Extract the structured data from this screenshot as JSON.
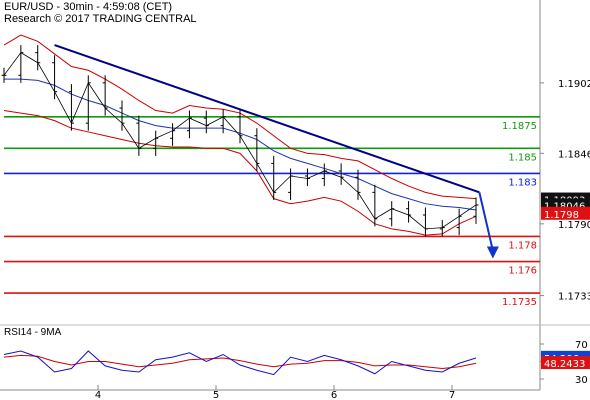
{
  "header": {
    "title": "EUR/USD - 30min - 4:59:08 (CET)",
    "subtitle": "Research © 2017 TRADING CENTRAL"
  },
  "colors": {
    "support": "#dd1111",
    "resistance": "#119911",
    "pivot": "#1122dd",
    "trendline": "#000088",
    "arrow": "#1133cc",
    "price": "#000000",
    "bands": "#cc0000",
    "ma": "#2233aa",
    "rsi": "#1111cc",
    "rsi_ma": "#cc0000"
  },
  "chart_data": [
    {
      "type": "line",
      "name": "price-panel",
      "y_ticks": [
        1.1902,
        1.1846,
        1.179,
        1.1733
      ],
      "x_ticks": [
        "4",
        "5",
        "6",
        "7"
      ],
      "ylim": [
        1.1712,
        1.1944
      ],
      "levels": [
        {
          "value": 1.1875,
          "label": "1.1875",
          "kind": "resistance"
        },
        {
          "value": 1.185,
          "label": "1.185",
          "kind": "resistance"
        },
        {
          "value": 1.183,
          "label": "1.183",
          "kind": "pivot"
        },
        {
          "value": 1.178,
          "label": "1.178",
          "kind": "support"
        },
        {
          "value": 1.176,
          "label": "1.176",
          "kind": "support"
        },
        {
          "value": 1.1735,
          "label": "1.1735",
          "kind": "support"
        }
      ],
      "price_labels": [
        {
          "value": 1.18093,
          "label": "1.18093",
          "style": "dark"
        },
        {
          "value": 1.18046,
          "label": "1.18046",
          "style": "dark"
        },
        {
          "value": 1.1798,
          "label": "1.1798",
          "style": "red"
        }
      ],
      "trendline": {
        "from": [
          0.75,
          1.1932
        ],
        "to": [
          7.05,
          1.1815
        ]
      },
      "arrow": {
        "from": [
          7.05,
          1.1815
        ],
        "to": [
          7.25,
          1.1764
        ]
      },
      "x": [
        0.0,
        0.25,
        0.5,
        0.75,
        1.0,
        1.25,
        1.5,
        1.75,
        2.0,
        2.25,
        2.5,
        2.75,
        3.0,
        3.25,
        3.5,
        3.75,
        4.0,
        4.25,
        4.5,
        4.75,
        5.0,
        5.25,
        5.5,
        5.75,
        6.0,
        6.25,
        6.5,
        6.75,
        7.0
      ],
      "close": [
        1.1908,
        1.1926,
        1.1918,
        1.1895,
        1.187,
        1.1902,
        1.1882,
        1.187,
        1.185,
        1.1858,
        1.1864,
        1.1874,
        1.1868,
        1.1875,
        1.186,
        1.1838,
        1.1815,
        1.1828,
        1.1826,
        1.1832,
        1.1827,
        1.1815,
        1.1794,
        1.1802,
        1.1797,
        1.1786,
        1.1787,
        1.1796,
        1.1805
      ],
      "ma": [
        1.1905,
        1.1905,
        1.1904,
        1.19,
        1.1893,
        1.1888,
        1.1884,
        1.1878,
        1.1872,
        1.1868,
        1.1866,
        1.1866,
        1.1866,
        1.1866,
        1.1862,
        1.1857,
        1.1848,
        1.1842,
        1.1838,
        1.1834,
        1.183,
        1.1826,
        1.182,
        1.1814,
        1.181,
        1.1806,
        1.1804,
        1.1803,
        1.1801
      ],
      "upper": [
        1.1932,
        1.194,
        1.1935,
        1.1925,
        1.1915,
        1.1912,
        1.1905,
        1.1897,
        1.1888,
        1.188,
        1.1878,
        1.1884,
        1.1882,
        1.1881,
        1.1878,
        1.187,
        1.186,
        1.185,
        1.1846,
        1.1845,
        1.1842,
        1.184,
        1.1833,
        1.1826,
        1.182,
        1.1815,
        1.1812,
        1.1811,
        1.181
      ],
      "lower": [
        1.188,
        1.1878,
        1.1876,
        1.1872,
        1.1866,
        1.1863,
        1.186,
        1.1857,
        1.1854,
        1.1852,
        1.1851,
        1.1851,
        1.185,
        1.185,
        1.1846,
        1.1832,
        1.181,
        1.1806,
        1.1808,
        1.1811,
        1.1808,
        1.18,
        1.179,
        1.1786,
        1.1784,
        1.1781,
        1.1782,
        1.179,
        1.1796
      ]
    },
    {
      "type": "line",
      "name": "rsi-panel",
      "title": "RSI14 - 9MA",
      "y_ticks": [
        70,
        50,
        30
      ],
      "ylim": [
        22,
        78
      ],
      "value_labels": [
        {
          "value": 54.206,
          "label": "54.206",
          "style": "blue"
        },
        {
          "value": 48.2433,
          "label": "48.2433",
          "style": "red"
        }
      ],
      "x": [
        0.0,
        0.25,
        0.5,
        0.75,
        1.0,
        1.25,
        1.5,
        1.75,
        2.0,
        2.25,
        2.5,
        2.75,
        3.0,
        3.25,
        3.5,
        3.75,
        4.0,
        4.25,
        4.5,
        4.75,
        5.0,
        5.25,
        5.5,
        5.75,
        6.0,
        6.25,
        6.5,
        6.75,
        7.0
      ],
      "rsi": [
        58,
        62,
        55,
        38,
        42,
        62,
        45,
        40,
        38,
        52,
        55,
        60,
        50,
        58,
        46,
        40,
        35,
        55,
        50,
        57,
        52,
        45,
        36,
        50,
        45,
        40,
        38,
        48,
        54
      ],
      "rsi_ma": [
        55,
        57,
        56,
        50,
        46,
        50,
        50,
        47,
        44,
        46,
        48,
        52,
        53,
        54,
        51,
        47,
        44,
        47,
        48,
        51,
        51,
        49,
        45,
        46,
        46,
        44,
        42,
        44,
        48
      ]
    }
  ]
}
